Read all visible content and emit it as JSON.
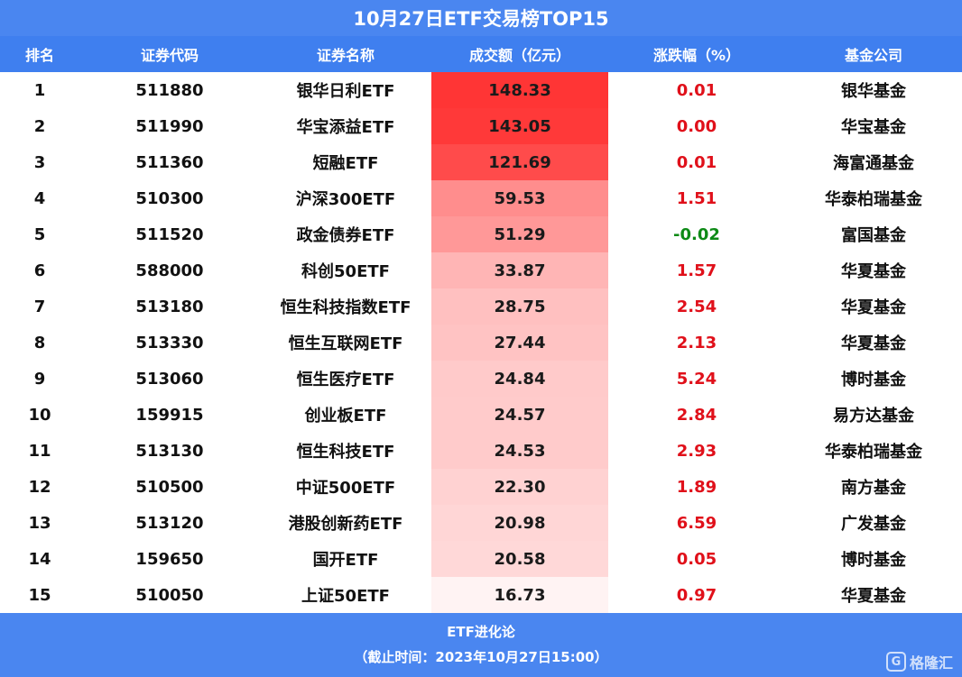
{
  "title": "10月27日ETF交易榜TOP15",
  "headers": {
    "rank": "排名",
    "code": "证券代码",
    "name": "证券名称",
    "volume": "成交额（亿元）",
    "change": "涨跌幅（%）",
    "company": "基金公司"
  },
  "colors": {
    "header_bg": "#3f7fef",
    "title_bg": "#4a86f0",
    "heat_max": "#ff3535",
    "heat_min": "#fff3f3",
    "up": "#e0101a",
    "down": "#0d8a16"
  },
  "chart_data": {
    "type": "table",
    "title": "10月27日ETF交易榜TOP15",
    "columns": [
      "排名",
      "证券代码",
      "证券名称",
      "成交额（亿元）",
      "涨跌幅（%）",
      "基金公司"
    ],
    "rows": [
      {
        "rank": "1",
        "code": "511880",
        "name": "银华日利ETF",
        "volume": "148.33",
        "change": "0.01",
        "company": "银华基金"
      },
      {
        "rank": "2",
        "code": "511990",
        "name": "华宝添益ETF",
        "volume": "143.05",
        "change": "0.00",
        "company": "华宝基金"
      },
      {
        "rank": "3",
        "code": "511360",
        "name": "短融ETF",
        "volume": "121.69",
        "change": "0.01",
        "company": "海富通基金"
      },
      {
        "rank": "4",
        "code": "510300",
        "name": "沪深300ETF",
        "volume": "59.53",
        "change": "1.51",
        "company": "华泰柏瑞基金"
      },
      {
        "rank": "5",
        "code": "511520",
        "name": "政金债券ETF",
        "volume": "51.29",
        "change": "-0.02",
        "company": "富国基金"
      },
      {
        "rank": "6",
        "code": "588000",
        "name": "科创50ETF",
        "volume": "33.87",
        "change": "1.57",
        "company": "华夏基金"
      },
      {
        "rank": "7",
        "code": "513180",
        "name": "恒生科技指数ETF",
        "volume": "28.75",
        "change": "2.54",
        "company": "华夏基金"
      },
      {
        "rank": "8",
        "code": "513330",
        "name": "恒生互联网ETF",
        "volume": "27.44",
        "change": "2.13",
        "company": "华夏基金"
      },
      {
        "rank": "9",
        "code": "513060",
        "name": "恒生医疗ETF",
        "volume": "24.84",
        "change": "5.24",
        "company": "博时基金"
      },
      {
        "rank": "10",
        "code": "159915",
        "name": "创业板ETF",
        "volume": "24.57",
        "change": "2.84",
        "company": "易方达基金"
      },
      {
        "rank": "11",
        "code": "513130",
        "name": "恒生科技ETF",
        "volume": "24.53",
        "change": "2.93",
        "company": "华泰柏瑞基金"
      },
      {
        "rank": "12",
        "code": "510500",
        "name": "中证500ETF",
        "volume": "22.30",
        "change": "1.89",
        "company": "南方基金"
      },
      {
        "rank": "13",
        "code": "513120",
        "name": "港股创新药ETF",
        "volume": "20.98",
        "change": "6.59",
        "company": "广发基金"
      },
      {
        "rank": "14",
        "code": "159650",
        "name": "国开ETF",
        "volume": "20.58",
        "change": "0.05",
        "company": "博时基金"
      },
      {
        "rank": "15",
        "code": "510050",
        "name": "上证50ETF",
        "volume": "16.73",
        "change": "0.97",
        "company": "华夏基金"
      }
    ]
  },
  "footer": {
    "source": "ETF进化论",
    "as_of": "（截止时间：2023年10月27日15:00）"
  },
  "watermark": {
    "logo_glyph": "G",
    "text": "格隆汇"
  }
}
